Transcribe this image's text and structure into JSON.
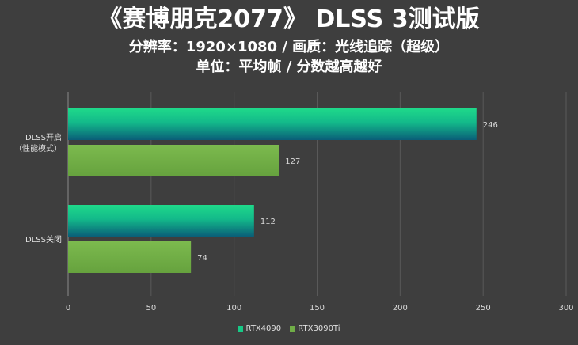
{
  "title": "《赛博朋克2077》 DLSS 3测试版",
  "subtitle1": "分辨率：1920×1080 / 画质：光线追踪（超级）",
  "subtitle2": "单位：平均帧 / 分数越高越好",
  "chart_data": {
    "type": "bar",
    "orientation": "horizontal",
    "categories": [
      "DLSS开启\n（性能模式）",
      "DLSS关闭"
    ],
    "series": [
      {
        "name": "RTX4090",
        "values": [
          246,
          112
        ],
        "color": "#17c986"
      },
      {
        "name": "RTX3090Ti",
        "values": [
          127,
          74
        ],
        "color": "#70ad47"
      }
    ],
    "xlim": [
      0,
      300
    ],
    "xticks": [
      0,
      50,
      100,
      150,
      200,
      250,
      300
    ],
    "grid": true,
    "legend_position": "bottom"
  }
}
